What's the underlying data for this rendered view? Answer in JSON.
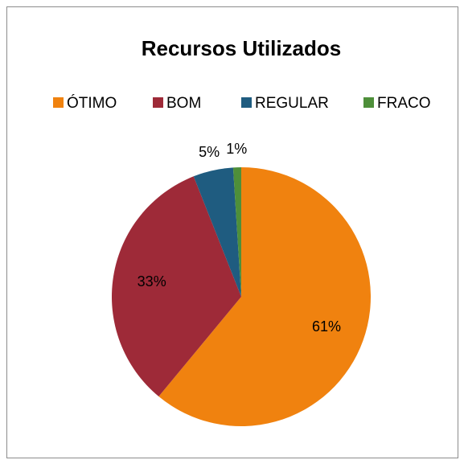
{
  "chart_data": {
    "type": "pie",
    "title": "Recursos Utilizados",
    "categories": [
      "ÓTIMO",
      "BOM",
      "REGULAR",
      "FRACO"
    ],
    "values": [
      61,
      33,
      5,
      1
    ],
    "value_labels": [
      "61%",
      "33%",
      "5%",
      "1%"
    ],
    "colors": [
      "#f0820f",
      "#9e2a38",
      "#1f5c80",
      "#4e8f3a"
    ],
    "legend": "top"
  }
}
